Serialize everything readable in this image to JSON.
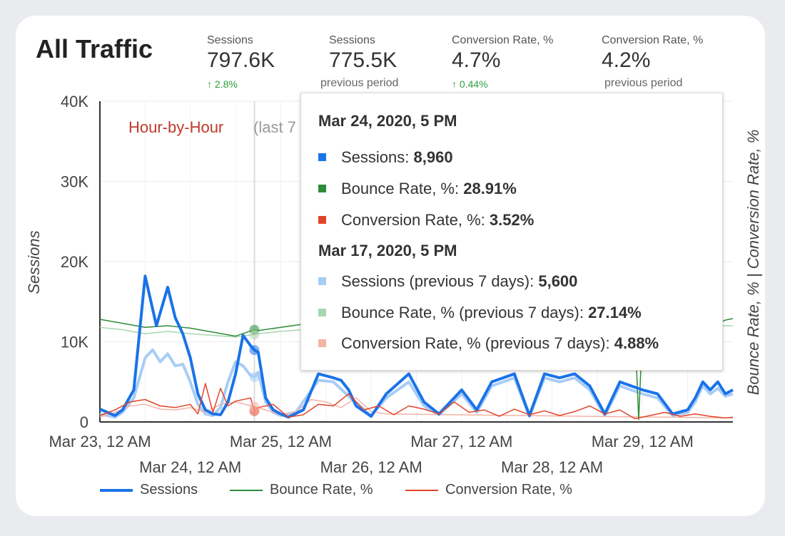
{
  "header": {
    "title": "All Traffic"
  },
  "kpis": [
    {
      "label": "Sessions",
      "value": "797.6K",
      "delta": "2.8%",
      "delta_arrow": "↑"
    },
    {
      "label": "Sessions",
      "value": "775.5K",
      "sub": "previous period"
    },
    {
      "label": "Conversion Rate, %",
      "value": "4.7%",
      "delta": "0.44%",
      "delta_arrow": "↑"
    },
    {
      "label": "Conversion Rate, %",
      "value": "4.2%",
      "sub": "previous period"
    }
  ],
  "chart_data": {
    "type": "line",
    "subtitle": "Hour-by-Hour",
    "subtitle_extra": "(last 7",
    "ylabel": "Sessions",
    "ylabel_right": "Bounce Rate, % | Conversion Rate, %",
    "ylim": [
      0,
      40000
    ],
    "y_ticks": [
      "0",
      "10K",
      "20K",
      "30K",
      "40K"
    ],
    "y_tick_values": [
      0,
      10000,
      20000,
      30000,
      40000
    ],
    "x_ticks_upper": [
      "Mar 23, 12 AM",
      "Mar 25, 12 AM",
      "Mar 27, 12 AM",
      "Mar 29, 12 AM"
    ],
    "x_ticks_lower": [
      "Mar 24, 12 AM",
      "Mar 26, 12 AM",
      "Mar 28, 12 AM"
    ],
    "x_range_hours": [
      0,
      168
    ],
    "hover_hour": 41,
    "colors": {
      "sessions": "#1a73e8",
      "sessions_prev": "#a8cdf5",
      "bounce": "#2e8b3a",
      "bounce_prev": "#a9d6ad",
      "conversion": "#e2452b",
      "conversion_prev": "#f4b4a6"
    },
    "series": [
      {
        "name": "Sessions",
        "x_hours": [
          0,
          4,
          6,
          9,
          12,
          15,
          18,
          20,
          22,
          24,
          26,
          28,
          30,
          32,
          34,
          36,
          38,
          40,
          41,
          42,
          44,
          46,
          48,
          50,
          54,
          58,
          62,
          64,
          66,
          68,
          72,
          76,
          82,
          86,
          90,
          96,
          100,
          104,
          110,
          114,
          118,
          122,
          126,
          130,
          134,
          138,
          144,
          148,
          152,
          156,
          158,
          160,
          162,
          164,
          166,
          168
        ],
        "values": [
          1600,
          800,
          1500,
          4000,
          18200,
          12000,
          16800,
          13000,
          11000,
          8000,
          3500,
          1500,
          1000,
          900,
          2500,
          6000,
          10800,
          9500,
          8960,
          8700,
          3000,
          1500,
          1000,
          600,
          1500,
          6000,
          5500,
          5200,
          4000,
          2000,
          700,
          3500,
          6000,
          2500,
          1000,
          4000,
          1500,
          5000,
          6000,
          800,
          6000,
          5500,
          6000,
          4500,
          1000,
          5000,
          4000,
          3500,
          1000,
          1500,
          3000,
          5000,
          4000,
          5000,
          3500,
          4000
        ]
      },
      {
        "name": "Sessions (previous 7 days)",
        "x_hours": [
          0,
          4,
          6,
          9,
          12,
          14,
          16,
          18,
          20,
          22,
          24,
          26,
          28,
          30,
          32,
          34,
          36,
          38,
          40,
          41,
          42,
          44,
          46,
          48,
          52,
          58,
          62,
          66,
          72,
          76,
          82,
          86,
          90,
          96,
          100,
          104,
          110,
          114,
          118,
          122,
          126,
          130,
          134,
          138,
          144,
          148,
          152,
          156,
          158,
          160,
          162,
          164,
          166,
          168
        ],
        "values": [
          1000,
          600,
          1200,
          3000,
          8000,
          9000,
          7500,
          8500,
          7000,
          7200,
          5000,
          2200,
          1000,
          800,
          1800,
          5000,
          7500,
          7000,
          5800,
          5600,
          6200,
          2500,
          1200,
          800,
          1200,
          5200,
          5000,
          3200,
          800,
          3000,
          5000,
          2000,
          900,
          3500,
          1200,
          4500,
          5500,
          700,
          5500,
          5000,
          5500,
          4000,
          800,
          4500,
          3500,
          3000,
          800,
          1200,
          2500,
          4500,
          3500,
          4200,
          3200,
          3500
        ]
      },
      {
        "name": "Bounce Rate, %",
        "x_hours": [
          0,
          6,
          12,
          18,
          24,
          30,
          36,
          41,
          42,
          48,
          54,
          60,
          66,
          72,
          78,
          84,
          90,
          96,
          102,
          108,
          114,
          120,
          126,
          132,
          138,
          142,
          143,
          144,
          150,
          156,
          162,
          166,
          168
        ],
        "values": [
          12800,
          12300,
          11800,
          12000,
          11700,
          11200,
          10700,
          11500,
          11400,
          11800,
          12200,
          12000,
          11600,
          11800,
          12100,
          11900,
          11700,
          12000,
          11800,
          11900,
          12100,
          11800,
          11600,
          11900,
          11800,
          11600,
          300,
          11500,
          11700,
          11900,
          11800,
          12700,
          12900
        ]
      },
      {
        "name": "Bounce Rate, % (previous 7 days)",
        "x_hours": [
          0,
          6,
          12,
          18,
          24,
          30,
          36,
          41,
          42,
          48,
          54,
          60,
          168
        ],
        "values": [
          11800,
          11500,
          11000,
          11300,
          11000,
          10800,
          10600,
          10900,
          11000,
          11300,
          11500,
          11300,
          12000
        ]
      },
      {
        "name": "Conversion Rate, %",
        "x_hours": [
          0,
          4,
          8,
          12,
          16,
          20,
          24,
          26,
          28,
          30,
          32,
          34,
          36,
          40,
          41,
          42,
          46,
          50,
          54,
          58,
          62,
          66,
          70,
          74,
          78,
          82,
          86,
          90,
          94,
          98,
          102,
          106,
          110,
          114,
          118,
          122,
          126,
          130,
          134,
          138,
          142,
          146,
          150,
          154,
          158,
          162,
          166,
          168
        ],
        "values": [
          800,
          1500,
          2500,
          2800,
          2000,
          1800,
          2200,
          1000,
          4800,
          1200,
          4200,
          2000,
          2600,
          3000,
          1350,
          1800,
          2200,
          600,
          900,
          2200,
          2000,
          3500,
          1500,
          2000,
          900,
          2000,
          1600,
          1000,
          2500,
          1200,
          1500,
          700,
          1600,
          900,
          1400,
          800,
          1300,
          2000,
          1000,
          1500,
          400,
          800,
          1200,
          700,
          1000,
          700,
          500,
          600
        ]
      },
      {
        "name": "Conversion Rate, % (previous 7 days)",
        "x_hours": [
          0,
          4,
          8,
          12,
          16,
          20,
          24,
          28,
          32,
          36,
          41,
          44,
          48,
          52,
          56,
          60,
          64,
          68,
          72,
          76,
          168
        ],
        "values": [
          600,
          1200,
          2000,
          2200,
          1600,
          1500,
          1800,
          1200,
          2200,
          2500,
          1900,
          1500,
          900,
          1200,
          2800,
          2500,
          1800,
          3000,
          1300,
          1000,
          500
        ]
      }
    ]
  },
  "tooltip": {
    "current_date": "Mar 24, 2020, 5 PM",
    "current_rows": [
      {
        "label": "Sessions: ",
        "value": "8,960"
      },
      {
        "label": "Bounce Rate, %: ",
        "value": "28.91%"
      },
      {
        "label": "Conversion Rate, %: ",
        "value": "3.52%"
      }
    ],
    "previous_date": "Mar 17, 2020, 5 PM",
    "previous_rows": [
      {
        "label": "Sessions (previous 7 days): ",
        "value": "5,600"
      },
      {
        "label": "Bounce Rate, % (previous 7 days): ",
        "value": "27.14%"
      },
      {
        "label": "Conversion Rate, % (previous 7 days): ",
        "value": "4.88%"
      }
    ]
  },
  "legend": {
    "items": [
      "Sessions",
      "Bounce Rate, %",
      "Conversion Rate, %"
    ]
  }
}
